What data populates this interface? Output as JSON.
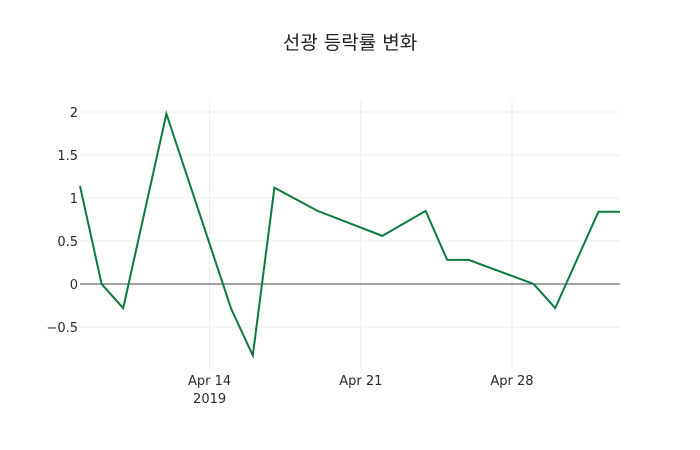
{
  "chart_data": {
    "type": "line",
    "title": "선광 등락률 변화",
    "xlabel": "",
    "ylabel": "",
    "x": [
      "2019-04-08",
      "2019-04-09",
      "2019-04-10",
      "2019-04-12",
      "2019-04-15",
      "2019-04-16",
      "2019-04-17",
      "2019-04-19",
      "2019-04-22",
      "2019-04-24",
      "2019-04-25",
      "2019-04-26",
      "2019-04-29",
      "2019-04-30",
      "2019-05-02",
      "2019-05-03"
    ],
    "series": [
      {
        "name": "등락률",
        "color": "#0b7a3e",
        "values": [
          1.14,
          0.0,
          -0.28,
          1.98,
          -0.29,
          -0.83,
          1.12,
          0.85,
          0.56,
          0.85,
          0.28,
          0.28,
          0.0,
          -0.28,
          0.84,
          0.84
        ]
      }
    ],
    "yticks": [
      -0.5,
      0,
      0.5,
      1,
      1.5,
      2
    ],
    "ytick_labels": [
      "−0.5",
      "0",
      "0.5",
      "1",
      "1.5",
      "2"
    ],
    "xticks": [
      {
        "date": "2019-04-14",
        "label": "Apr 14",
        "sublabel": "2019"
      },
      {
        "date": "2019-04-21",
        "label": "Apr 21",
        "sublabel": ""
      },
      {
        "date": "2019-04-28",
        "label": "Apr 28",
        "sublabel": ""
      }
    ],
    "xlim": [
      "2019-04-08",
      "2019-05-03"
    ],
    "ylim": [
      -1.0,
      2.14
    ],
    "grid": true,
    "zeroline": true,
    "legend": false
  }
}
